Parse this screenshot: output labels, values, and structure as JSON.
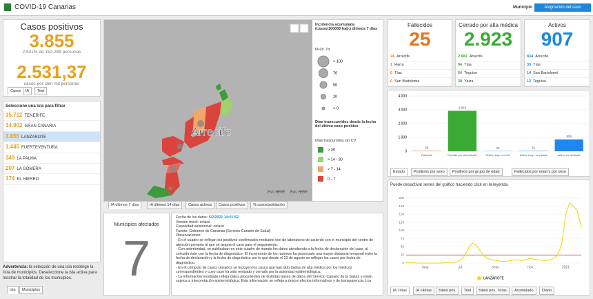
{
  "header": {
    "title": "COVID-19 Canarias",
    "municipio": "Municipio",
    "button": "Asignación del caso"
  },
  "summary": {
    "title": "Casos positivos",
    "cases": "3.855",
    "pct": "2,531% de 152.289 personas",
    "rate": "2.531,37",
    "rate_label": "casos por cien mil personas",
    "tabs": [
      "Casos",
      "IA",
      "Test"
    ]
  },
  "islands": {
    "title": "Seleccione una isla para filtrar",
    "selected": 2,
    "rows": [
      {
        "count": "15.712",
        "name": "TENERIFE"
      },
      {
        "count": "14.902",
        "name": "GRAN CANARIA"
      },
      {
        "count": "3.855",
        "name": "LANZAROTE"
      },
      {
        "count": "1.445",
        "name": "FUERTEVENTURA"
      },
      {
        "count": "349",
        "name": "LA PALMA"
      },
      {
        "count": "207",
        "name": "LA GOMERA"
      },
      {
        "count": "174",
        "name": "EL HIERRO"
      }
    ]
  },
  "note": {
    "bold": "Advertencia:",
    "text": " la selección de una isla restringe la lista de municipios. Deseleccione la isla activa para mostrar la totalidad de los municipios."
  },
  "left_tabs": [
    "Isla",
    "Municipios"
  ],
  "map": {
    "label": "Arrecife",
    "attribution": [
      "Esri, HERE",
      "Esri, HERE"
    ],
    "legend": {
      "title": "Incidencia acumulada (casos/100000 hab.) últimos 7 días",
      "subtitle": "IA últ. 7d",
      "sizes": [
        "> 100",
        "70",
        "50",
        "20",
        "< 0"
      ],
      "title2": "Días transcurridos desde la fecha del último caso positivo",
      "subtitle2": "Días trascurridos sin CV",
      "classes": [
        {
          "label": "> 30",
          "color": "#3d9b3d"
        },
        {
          "label": "> 14 - 30",
          "color": "#9fd26f"
        },
        {
          "label": "> 7 - 14",
          "color": "#f2a66a"
        },
        {
          "label": "0 - 7",
          "color": "#d9443c"
        }
      ]
    },
    "tabs": [
      "IA últimos 7 días",
      "IA últimos 14 días",
      "Casos activos",
      "Casos positivos",
      "% casos/población"
    ]
  },
  "municipios": {
    "title": "Municipios afectados",
    "count": "7"
  },
  "info": {
    "date_label": "Fecha de los datos:",
    "date": "5/2/2021 14:01:52",
    "lines": [
      "Versión móvil: enlace",
      "Capacidad asistencial: enlace",
      "Fuente: Gobierno de Canarias (Servicio Canario de Salud)",
      "Observaciones:",
      "- En el cuadro se reflejan los positivos confirmados mediante test de laboratorio de acuerdo con el municipio del centro de atención primaria al que se asigna el caso para el seguimiento.",
      "- Con anterioridad, se publicaban en este cuadro de mando los datos atendiendo a la fecha de declaración del caso, al coincidir éste con la fecha de diagnóstico. El incremento de los rastreos ha provocado una mayor distancia temporal entre la fecha de declaración y la fecha de diagnóstico por lo que desde el 22 de agosto se reflejan los casos por fecha de diagnóstico.",
      "- En el cómputo de casos cerrados se incluyen los casos que han sido dados de alta médica por los médicos correspondientes y cuyo caso ha sido revisado y cerrado por la autoridad epidemiológica.",
      "- La información mostrada refleja datos procedentes de distintas bases de datos del Servicio Canario de la Salud, y están sujetos a interpretación epidemiológica. Esta información se refleja a únicos efectos informativos y de transparencia. Los"
    ]
  },
  "kpis": [
    {
      "title": "Fallecidos",
      "value": "25",
      "color": "#e8731e",
      "rows": [
        {
          "count": "24",
          "name": "Arrecife"
        },
        {
          "count": "1",
          "name": "Haría"
        },
        {
          "count": "0",
          "name": "Tías"
        },
        {
          "count": "0",
          "name": "San Bartolomé"
        }
      ]
    },
    {
      "title": "Cerrado por alta médica",
      "value": "2.923",
      "color": "#3aaa35",
      "rows": [
        {
          "count": "2.682",
          "name": "Arrecife"
        },
        {
          "count": "94",
          "name": "Tías"
        },
        {
          "count": "54",
          "name": "Teguise"
        },
        {
          "count": "38",
          "name": "Yaiza"
        }
      ]
    },
    {
      "title": "Activos",
      "value": "907",
      "color": "#1e88d8",
      "rows": [
        {
          "count": "834",
          "name": "Arrecife"
        },
        {
          "count": "33",
          "name": "Tías"
        },
        {
          "count": "14",
          "name": "San Bartolomé"
        },
        {
          "count": "12",
          "name": "Teguise"
        }
      ]
    }
  ],
  "bar_tabs": [
    "Estado",
    "Positivos por sexo",
    "Positivos por grupo de edad",
    "Fallecidos por edad y por sexo"
  ],
  "line_note": "Puede desactivar series del gráfico haciendo click en la leyenda.",
  "line_tabs": [
    "IA 7días",
    "IA 14días",
    "%test pos.",
    "Test",
    "%test pos. 7días",
    "Acumulado",
    "Diario"
  ],
  "chart_data": [
    {
      "type": "bar",
      "categories": [
        "Fallecido",
        "Cerrado por alta médica",
        "Activo hosp. en UCI",
        "Activo hosp. en planta",
        "Activo en domicilio"
      ],
      "values": [
        25,
        2923,
        20,
        31,
        856
      ],
      "value_labels": [
        "25",
        "2.923",
        "20",
        "31",
        "856"
      ],
      "colors": [
        "#c8783c",
        "#3aaa35",
        "#5fb4e8",
        "#5fb4e8",
        "#1e88f0"
      ],
      "ylim": [
        0,
        4000
      ],
      "yticks": [
        0,
        {
          "value": 1000,
          "label": "1.000"
        },
        {
          "value": 2000,
          "label": "2.000"
        },
        {
          "value": 3000,
          "label": "3.000"
        },
        {
          "value": 4000,
          "label": "4.000"
        }
      ],
      "grid": true
    },
    {
      "type": "line",
      "categories": [
        null,
        null,
        null,
        null,
        null,
        "may.",
        null,
        null,
        null,
        null,
        null,
        null,
        null,
        null,
        "jul.",
        null,
        null,
        null,
        null,
        null,
        null,
        null,
        null,
        "sept.",
        null,
        null,
        null,
        null,
        null,
        null,
        null,
        null,
        "nov.",
        null,
        null,
        null,
        null,
        null,
        null,
        null,
        null,
        "2021",
        null,
        null,
        null,
        null
      ],
      "series": [
        {
          "name": "LANZAROTE",
          "color": "#f2dc1d",
          "values": [
            2,
            1,
            1,
            0,
            0,
            0,
            0,
            0,
            0,
            0,
            1,
            1,
            2,
            4,
            10,
            22,
            45,
            62,
            55,
            38,
            22,
            14,
            10,
            8,
            6,
            5,
            6,
            8,
            10,
            9,
            8,
            12,
            15,
            12,
            10,
            8,
            8,
            10,
            15,
            25,
            60,
            150,
            185,
            175,
            160,
            110
          ]
        }
      ],
      "hline": {
        "value": 25,
        "color": "#c0392b"
      },
      "ylim": [
        0,
        200
      ],
      "yticks": [
        0,
        25,
        50,
        75,
        100,
        125,
        150,
        175,
        200
      ],
      "grid": true
    }
  ]
}
